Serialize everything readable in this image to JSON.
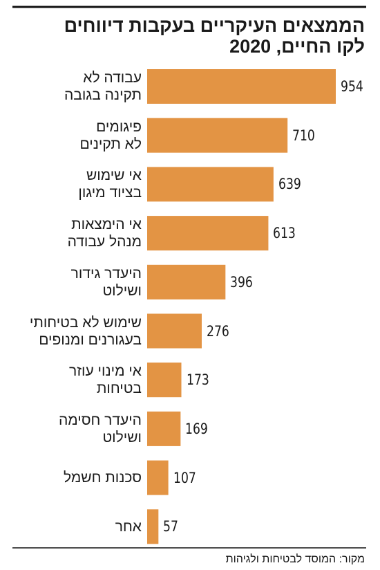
{
  "chart_data": {
    "type": "bar",
    "orientation": "horizontal",
    "title": "הממצאים העיקריים בעקבות דיווחים\nלקו החיים, 2020",
    "categories": [
      "עבודה לא\nתקינה בגובה",
      "פיגומים\nלא תקינים",
      "אי שימוש\nבציוד מיגון",
      "אי הימצאות\nמנהל עבודה",
      "היעדר גידור\nושילוט",
      "שימוש לא בטיחותי\nבעגורנים ומנופים",
      "אי מינוי עוזר\nבטיחות",
      "היעדר חסימה\nושילוט",
      "סכנות חשמל",
      "אחר"
    ],
    "values": [
      954,
      710,
      639,
      613,
      396,
      276,
      173,
      169,
      107,
      57
    ],
    "color": "#e39444",
    "source": "מקור: המוסד לבטיחות ולגיהות"
  }
}
